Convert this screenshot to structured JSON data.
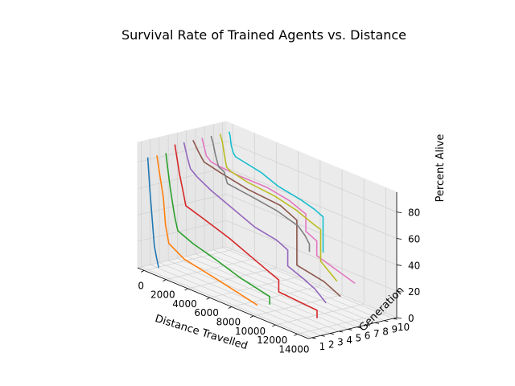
{
  "chart_data": {
    "type": "line3d",
    "title": "Survival Rate of Trained Agents vs. Distance",
    "xlabel": "Distance Travelled",
    "ylabel": "Generation",
    "zlabel": "Percent Alive",
    "xlim": [
      -600,
      15000
    ],
    "ylim": [
      0.6,
      10.4
    ],
    "zlim": [
      0,
      95
    ],
    "xticks": [
      0,
      2000,
      4000,
      6000,
      8000,
      10000,
      12000,
      14000
    ],
    "yticks": [
      1,
      2,
      3,
      4,
      5,
      6,
      7,
      8,
      9,
      10
    ],
    "zticks": [
      0,
      20,
      40,
      60,
      80
    ],
    "grid": true,
    "series": [
      {
        "generation": 1,
        "color": "#1f77b4",
        "points": [
          [
            0,
            85
          ],
          [
            200,
            60
          ],
          [
            400,
            40
          ],
          [
            600,
            20
          ],
          [
            800,
            12
          ],
          [
            1000,
            5
          ]
        ]
      },
      {
        "generation": 2,
        "color": "#ff7f0e",
        "points": [
          [
            0,
            85
          ],
          [
            300,
            70
          ],
          [
            600,
            55
          ],
          [
            800,
            35
          ],
          [
            1100,
            22
          ],
          [
            2500,
            15
          ],
          [
            5500,
            10
          ],
          [
            9200,
            3
          ]
        ]
      },
      {
        "generation": 3,
        "color": "#2ca02c",
        "points": [
          [
            0,
            85
          ],
          [
            400,
            60
          ],
          [
            800,
            40
          ],
          [
            1100,
            30
          ],
          [
            2500,
            25
          ],
          [
            4600,
            20
          ],
          [
            6800,
            14
          ],
          [
            9500,
            9
          ],
          [
            9500,
            3
          ]
        ]
      },
      {
        "generation": 4,
        "color": "#d62728",
        "points": [
          [
            0,
            90
          ],
          [
            400,
            70
          ],
          [
            800,
            55
          ],
          [
            1000,
            47
          ],
          [
            2500,
            43
          ],
          [
            5000,
            36
          ],
          [
            7500,
            27
          ],
          [
            9500,
            20
          ],
          [
            9500,
            11
          ],
          [
            13000,
            9
          ],
          [
            13000,
            3
          ]
        ]
      },
      {
        "generation": 5,
        "color": "#9467bd",
        "points": [
          [
            0,
            90
          ],
          [
            300,
            80
          ],
          [
            600,
            72
          ],
          [
            1200,
            68
          ],
          [
            2500,
            62
          ],
          [
            4500,
            55
          ],
          [
            6500,
            48
          ],
          [
            8500,
            45
          ],
          [
            9500,
            41
          ],
          [
            9500,
            29
          ],
          [
            11000,
            24
          ],
          [
            12000,
            20
          ],
          [
            13000,
            13
          ]
        ]
      },
      {
        "generation": 6,
        "color": "#8c564b",
        "points": [
          [
            0,
            90
          ],
          [
            500,
            83
          ],
          [
            1000,
            77
          ],
          [
            2500,
            74
          ],
          [
            5000,
            70
          ],
          [
            8000,
            68
          ],
          [
            9500,
            62
          ],
          [
            9500,
            28
          ],
          [
            12000,
            24
          ],
          [
            13500,
            18
          ]
        ]
      },
      {
        "generation": 7,
        "color": "#e377c2",
        "points": [
          [
            0,
            90
          ],
          [
            400,
            78
          ],
          [
            800,
            75
          ],
          [
            1500,
            74
          ],
          [
            3500,
            73
          ],
          [
            6000,
            73
          ],
          [
            8000,
            70
          ],
          [
            9500,
            65
          ],
          [
            9500,
            52
          ],
          [
            10500,
            48
          ],
          [
            10500,
            37
          ],
          [
            14000,
            28
          ]
        ]
      },
      {
        "generation": 8,
        "color": "#7f7f7f",
        "points": [
          [
            0,
            90
          ],
          [
            200,
            85
          ],
          [
            400,
            77
          ],
          [
            700,
            69
          ],
          [
            1200,
            67
          ],
          [
            1500,
            59
          ],
          [
            3500,
            57
          ],
          [
            6000,
            54
          ],
          [
            8000,
            49
          ],
          [
            8600,
            44
          ],
          [
            9000,
            39
          ],
          [
            9000,
            33
          ]
        ]
      },
      {
        "generation": 9,
        "color": "#bcbd22",
        "points": [
          [
            0,
            90
          ],
          [
            200,
            85
          ],
          [
            400,
            75
          ],
          [
            600,
            67
          ],
          [
            900,
            65
          ],
          [
            2500,
            62
          ],
          [
            5000,
            60
          ],
          [
            7000,
            56
          ],
          [
            8500,
            51
          ],
          [
            9200,
            49
          ],
          [
            9200,
            25
          ],
          [
            10700,
            15
          ]
        ]
      },
      {
        "generation": 10,
        "color": "#17becf",
        "points": [
          [
            0,
            90
          ],
          [
            100,
            87
          ],
          [
            200,
            80
          ],
          [
            400,
            75
          ],
          [
            600,
            73
          ],
          [
            1200,
            72
          ],
          [
            3000,
            69
          ],
          [
            4500,
            64
          ],
          [
            6500,
            61
          ],
          [
            7800,
            58
          ],
          [
            8600,
            55
          ],
          [
            8600,
            28
          ]
        ]
      }
    ]
  }
}
